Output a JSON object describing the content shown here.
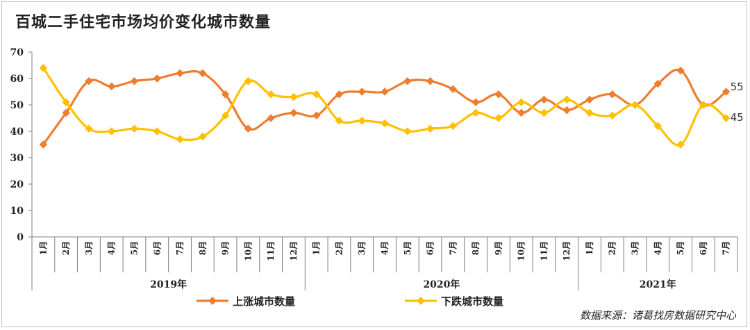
{
  "title": "百城二手住宅市场均价变化城市数量",
  "source": "数据来源：诸葛找房数据研究中心",
  "chart_data": {
    "type": "line",
    "categories": [
      "1月",
      "2月",
      "3月",
      "4月",
      "5月",
      "6月",
      "7月",
      "8月",
      "9月",
      "10月",
      "11月",
      "12月",
      "1月",
      "2月",
      "3月",
      "4月",
      "5月",
      "6月",
      "7月",
      "8月",
      "9月",
      "10月",
      "11月",
      "12月",
      "1月",
      "2月",
      "3月",
      "4月",
      "5月",
      "6月",
      "7月"
    ],
    "year_groups": [
      {
        "label": "2019年",
        "count": 12
      },
      {
        "label": "2020年",
        "count": 12
      },
      {
        "label": "2021年",
        "count": 7
      }
    ],
    "ylim": [
      0,
      70
    ],
    "yticks": [
      0,
      10,
      20,
      30,
      40,
      50,
      60,
      70
    ],
    "series": [
      {
        "name": "上涨城市数量",
        "color": "#ED7D31",
        "values": [
          35,
          47,
          59,
          57,
          59,
          60,
          62,
          62,
          54,
          41,
          45,
          47,
          46,
          54,
          55,
          55,
          59,
          59,
          56,
          51,
          54,
          47,
          52,
          48,
          52,
          54,
          50,
          58,
          63,
          50,
          55
        ]
      },
      {
        "name": "下跌城市数量",
        "color": "#FFC000",
        "values": [
          64,
          51,
          41,
          40,
          41,
          40,
          37,
          38,
          46,
          59,
          54,
          53,
          54,
          44,
          44,
          43,
          40,
          41,
          42,
          47,
          45,
          51,
          47,
          52,
          47,
          46,
          50,
          42,
          35,
          50,
          45
        ]
      }
    ],
    "end_labels": [
      "55",
      "45"
    ],
    "legend_position": "bottom",
    "grid": false
  }
}
